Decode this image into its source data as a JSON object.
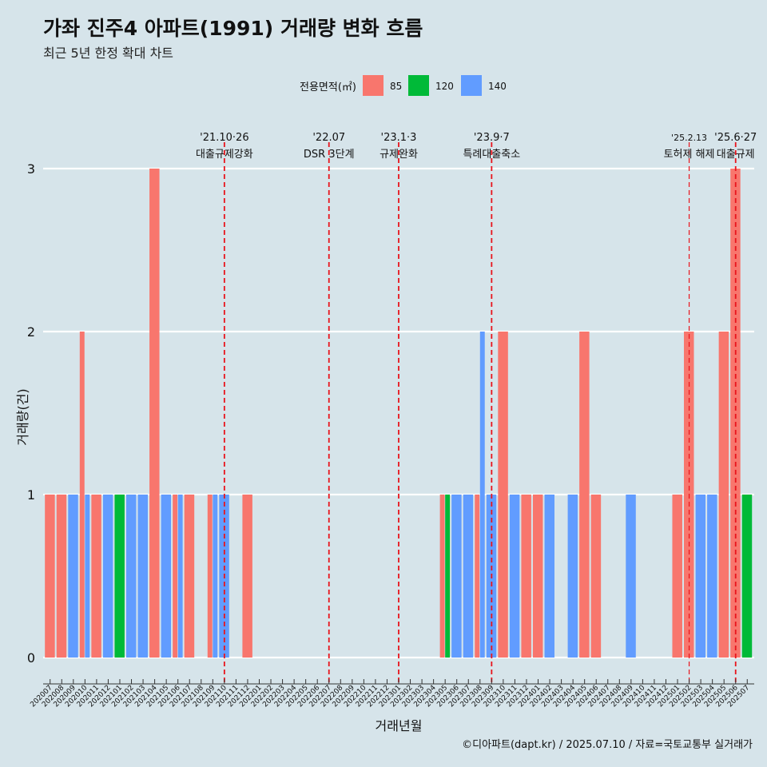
{
  "title": "가좌 진주4 아파트(1991) 거래량 변화 흐름",
  "subtitle": "최근 5년 한정 확대 차트",
  "caption": "©디아파트(dapt.kr) / 2025.07.10 / 자료=국토교통부 실거래가",
  "colors": {
    "background": "#d6e4ea",
    "85": "#f8766d",
    "120": "#00ba38",
    "140": "#619cff",
    "vline": "#e8141c"
  },
  "chart_data": {
    "type": "bar",
    "xlabel": "거래년월",
    "ylabel": "거래량(건)",
    "ylim": [
      0,
      3
    ],
    "yticks": [
      0,
      1,
      2,
      3
    ],
    "grid": true,
    "legend": {
      "title": "전용면적(㎡)",
      "placement": "top",
      "entries": [
        "85",
        "120",
        "140"
      ]
    },
    "categories": [
      "202007",
      "202008",
      "202009",
      "202010",
      "202011",
      "202012",
      "202101",
      "202102",
      "202103",
      "202104",
      "202105",
      "202106",
      "202107",
      "202108",
      "202109",
      "202110",
      "202111",
      "202112",
      "202201",
      "202202",
      "202203",
      "202204",
      "202205",
      "202206",
      "202207",
      "202208",
      "202209",
      "202210",
      "202211",
      "202212",
      "202301",
      "202302",
      "202303",
      "202304",
      "202305",
      "202306",
      "202307",
      "202308",
      "202309",
      "202310",
      "202311",
      "202312",
      "202401",
      "202402",
      "202403",
      "202404",
      "202405",
      "202406",
      "202407",
      "202408",
      "202409",
      "202410",
      "202411",
      "202412",
      "202501",
      "202502",
      "202503",
      "202504",
      "202505",
      "202506",
      "202507"
    ],
    "series": [
      {
        "name": "85",
        "values": [
          1,
          1,
          0,
          2,
          1,
          0,
          0,
          0,
          0,
          3,
          0,
          1,
          1,
          0,
          1,
          0,
          0,
          1,
          0,
          0,
          0,
          0,
          0,
          0,
          0,
          0,
          0,
          0,
          0,
          0,
          0,
          0,
          0,
          0,
          1,
          0,
          0,
          1,
          0,
          2,
          0,
          1,
          1,
          0,
          0,
          0,
          2,
          1,
          0,
          0,
          0,
          0,
          0,
          0,
          1,
          2,
          0,
          0,
          2,
          3,
          0
        ]
      },
      {
        "name": "120",
        "values": [
          0,
          0,
          0,
          0,
          0,
          0,
          1,
          0,
          0,
          0,
          0,
          0,
          0,
          0,
          0,
          0,
          0,
          0,
          0,
          0,
          0,
          0,
          0,
          0,
          0,
          0,
          0,
          0,
          0,
          0,
          0,
          0,
          0,
          0,
          1,
          0,
          0,
          0,
          0,
          0,
          0,
          0,
          0,
          0,
          0,
          0,
          0,
          0,
          0,
          0,
          0,
          0,
          0,
          0,
          0,
          0,
          0,
          0,
          0,
          0,
          1
        ]
      },
      {
        "name": "140",
        "values": [
          0,
          0,
          1,
          1,
          0,
          1,
          0,
          1,
          1,
          0,
          1,
          1,
          0,
          0,
          1,
          1,
          0,
          0,
          0,
          0,
          0,
          0,
          0,
          0,
          0,
          0,
          0,
          0,
          0,
          0,
          0,
          0,
          0,
          0,
          0,
          1,
          1,
          2,
          1,
          0,
          1,
          0,
          0,
          1,
          0,
          1,
          0,
          0,
          0,
          0,
          1,
          0,
          0,
          0,
          0,
          0,
          1,
          1,
          0,
          0,
          0
        ]
      }
    ],
    "annotations": [
      {
        "x": "202110",
        "date": "'21.10·26",
        "label": "대출규제강화"
      },
      {
        "x": "202207",
        "date": "'22.07",
        "label": "DSR 3단계"
      },
      {
        "x": "202301",
        "date": "'23.1·3",
        "label": "규제완화"
      },
      {
        "x": "202309",
        "date": "'23.9·7",
        "label": "특례대출축소"
      },
      {
        "x": "202502",
        "date": "'25.2.13",
        "label": "토허제 해제"
      },
      {
        "x": "202506",
        "date": "'25.6·27",
        "label": "대출규제"
      }
    ]
  }
}
